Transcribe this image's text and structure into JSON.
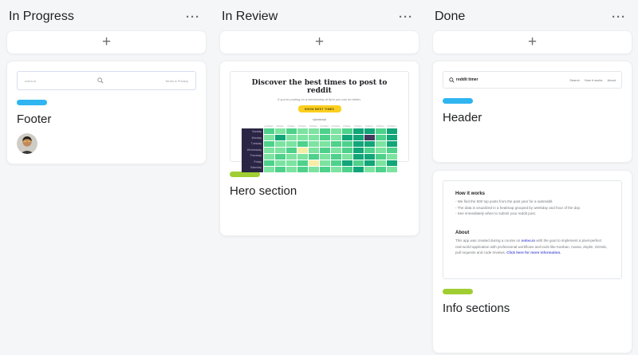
{
  "colors": {
    "blue": "#2fb5f0",
    "green": "#a0ce32",
    "board_bg": "#f5f6f8",
    "heatmap_day_col": "#2b2545",
    "hero_button_yellow": "#fccf1f"
  },
  "icons": {
    "ellipsis": "···",
    "plus": "+"
  },
  "board": {
    "columns": [
      {
        "title": "In Progress"
      },
      {
        "title": "In Review"
      },
      {
        "title": "Done"
      }
    ]
  },
  "cards": {
    "footer": {
      "title": "Footer",
      "tag": "blue"
    },
    "hero": {
      "title": "Hero section",
      "tag": "green"
    },
    "header": {
      "title": "Header",
      "tag": "blue"
    },
    "info": {
      "title": "Info sections",
      "tag": "green"
    }
  },
  "thumbnails": {
    "footer": {
      "left_text": "ooloo.io",
      "right_text": "Terms & Privacy"
    },
    "header": {
      "logo_text": "reddit timer",
      "nav": [
        "Search",
        "How it works",
        "About"
      ]
    },
    "hero": {
      "title": "Discover the best times to post to reddit",
      "subtitle": "If you're posting on a wednesday at 8pm you can do better.",
      "button_label": "SHOW BEST TIMES",
      "subreddit": "r/javascript",
      "time_labels": [
        "12:00am",
        "2:00am",
        "4:00am",
        "6:00am",
        "8:00am",
        "10:00am",
        "12:00pm",
        "2:00pm",
        "4:00pm",
        "6:00pm",
        "8:00pm",
        "10:00pm"
      ],
      "days": [
        "Sunday",
        "Monday",
        "Tuesday",
        "Wednesday",
        "Thursday",
        "Friday",
        "Saturday"
      ],
      "heatmap_palette": [
        "#7ce3a1",
        "#4ed18b",
        "#12a578",
        "#f6eda5",
        "#413a5c"
      ],
      "heatmap": [
        [
          1,
          0,
          1,
          0,
          0,
          1,
          0,
          1,
          2,
          2,
          1,
          2
        ],
        [
          0,
          2,
          0,
          0,
          0,
          1,
          0,
          2,
          2,
          4,
          1,
          2
        ],
        [
          1,
          0,
          0,
          1,
          0,
          0,
          1,
          1,
          2,
          2,
          0,
          2
        ],
        [
          0,
          0,
          1,
          3,
          0,
          1,
          0,
          1,
          2,
          1,
          0,
          1
        ],
        [
          0,
          1,
          0,
          0,
          1,
          0,
          1,
          0,
          2,
          2,
          1,
          0
        ],
        [
          1,
          0,
          0,
          1,
          3,
          0,
          1,
          2,
          1,
          2,
          0,
          2
        ],
        [
          0,
          1,
          0,
          1,
          0,
          1,
          0,
          1,
          2,
          0,
          1,
          0
        ]
      ]
    },
    "info": {
      "how_title": "How it works",
      "bullets": [
        "We find the 500 top posts from the past year for a subreddit.",
        "The data is visualized in a heatmap grouped by weekday and hour of the day.",
        "See immediately when to submit your reddit post."
      ],
      "about_title": "About",
      "about_before": "This app was created during a course on ",
      "about_link1": "ooloo.io",
      "about_mid": " with the goal to implement a pixel-perfect real-world application with professional workflows and tools like Kanban, Asana, Zeplin, GitHub, pull requests and code reviews. ",
      "about_link2": "Click here for more information."
    }
  }
}
